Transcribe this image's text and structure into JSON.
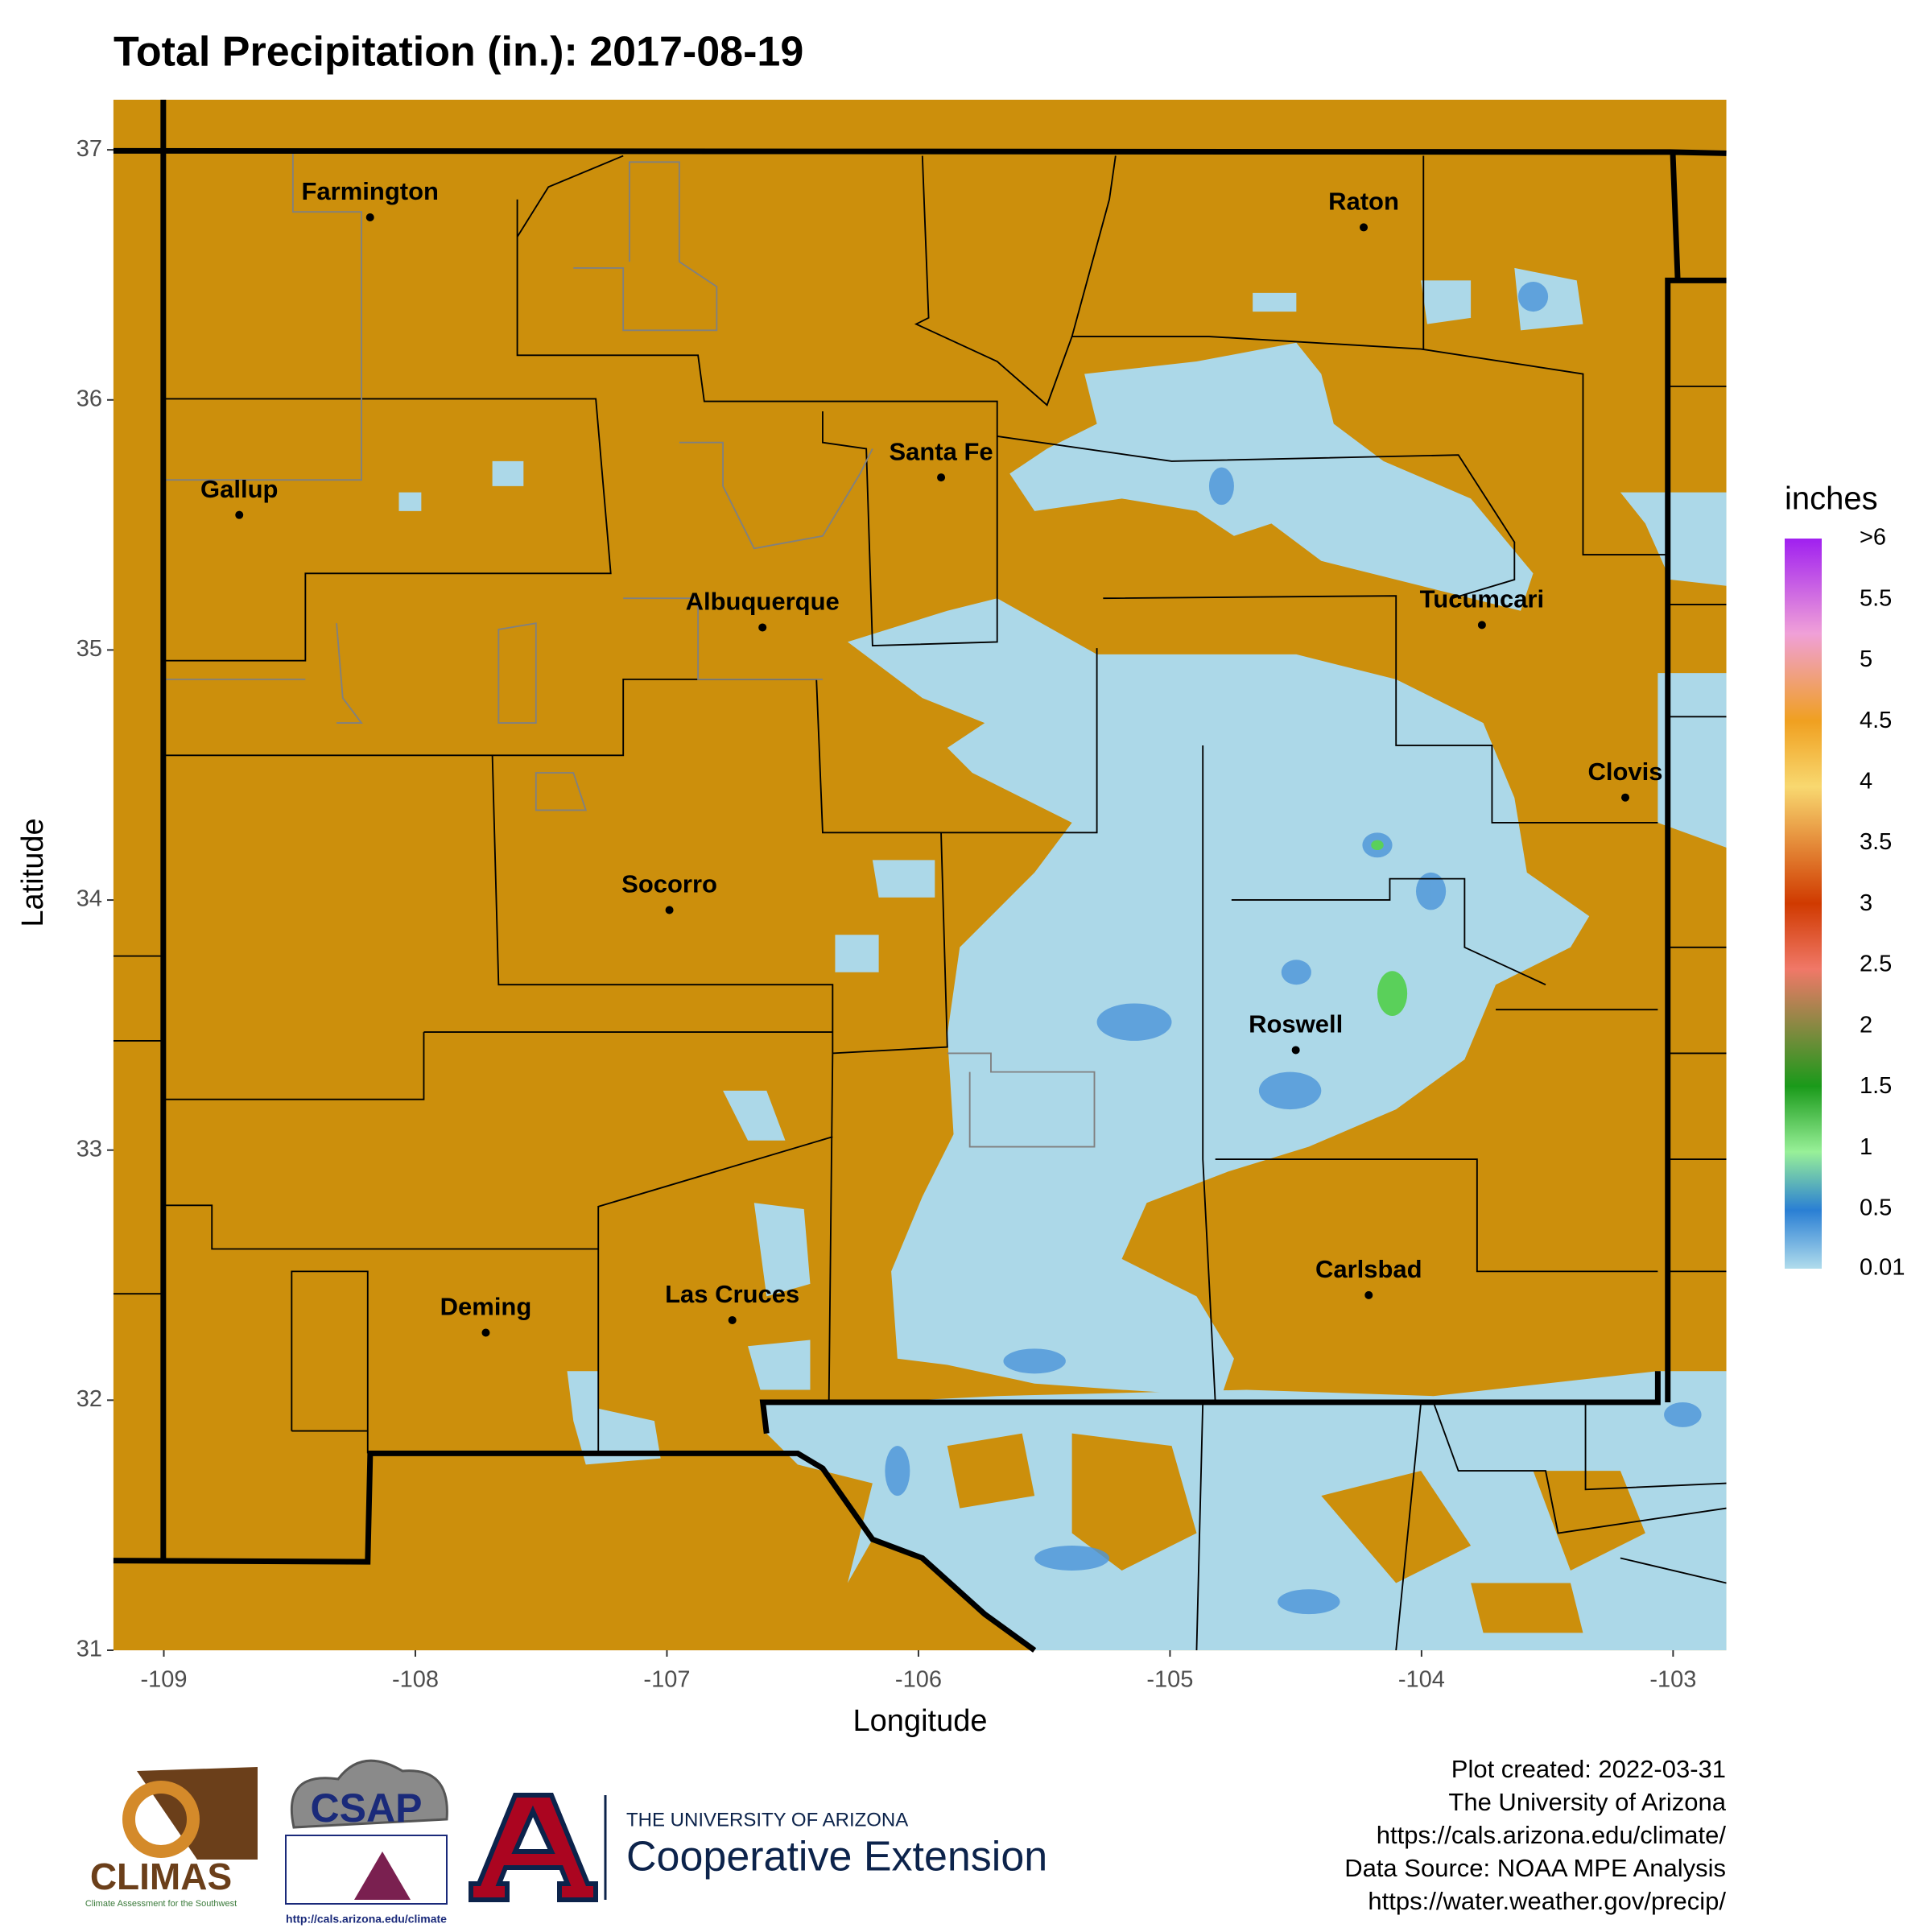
{
  "map": {
    "title": "Total Precipitation (in.): 2017-08-19",
    "xlabel": "Longitude",
    "ylabel": "Latitude",
    "xlim": [
      -109.2,
      -102.79
    ],
    "ylim": [
      31,
      37.2
    ],
    "xticks": [
      -109,
      -108,
      -107,
      -106,
      -105,
      -104,
      -103
    ],
    "yticks": [
      31,
      32,
      33,
      34,
      35,
      36,
      37
    ],
    "cities": [
      {
        "name": "Farmington",
        "lon": -108.18,
        "lat": 36.73
      },
      {
        "name": "Gallup",
        "lon": -108.7,
        "lat": 35.54
      },
      {
        "name": "Santa Fe",
        "lon": -105.91,
        "lat": 35.69
      },
      {
        "name": "Albuquerque",
        "lon": -106.62,
        "lat": 35.09
      },
      {
        "name": "Raton",
        "lon": -104.23,
        "lat": 36.69
      },
      {
        "name": "Tucumcari",
        "lon": -103.76,
        "lat": 35.1
      },
      {
        "name": "Clovis",
        "lon": -103.19,
        "lat": 34.41
      },
      {
        "name": "Socorro",
        "lon": -106.99,
        "lat": 33.96
      },
      {
        "name": "Roswell",
        "lon": -104.5,
        "lat": 33.4
      },
      {
        "name": "Carlsbad",
        "lon": -104.21,
        "lat": 32.42
      },
      {
        "name": "Deming",
        "lon": -107.72,
        "lat": 32.27
      },
      {
        "name": "Las Cruces",
        "lon": -106.74,
        "lat": 32.32
      }
    ],
    "legend": {
      "title": "inches",
      "lim": [
        0.01,
        6
      ],
      "ticks": [
        0.01,
        0.5,
        1,
        1.5,
        2,
        2.5,
        3,
        3.5,
        4,
        4.5,
        5,
        5.5,
        {
          "value": 6,
          "label": ">6"
        }
      ]
    },
    "credits": [
      "Plot created: 2022-03-31",
      "The University of Arizona",
      "https://cals.arizona.edu/climate/",
      "Data Source: NOAA MPE Analysis",
      "https://water.weather.gov/precip/"
    ],
    "logos": {
      "climas": "CLIMAS",
      "climas_sub": "Climate Assessment for the Southwest",
      "csap": "CSAP",
      "csap_url": "http://cals.arizona.edu/climate",
      "ua_line1": "THE UNIVERSITY OF ARIZONA",
      "ua_line2": "Cooperative Extension"
    }
  }
}
